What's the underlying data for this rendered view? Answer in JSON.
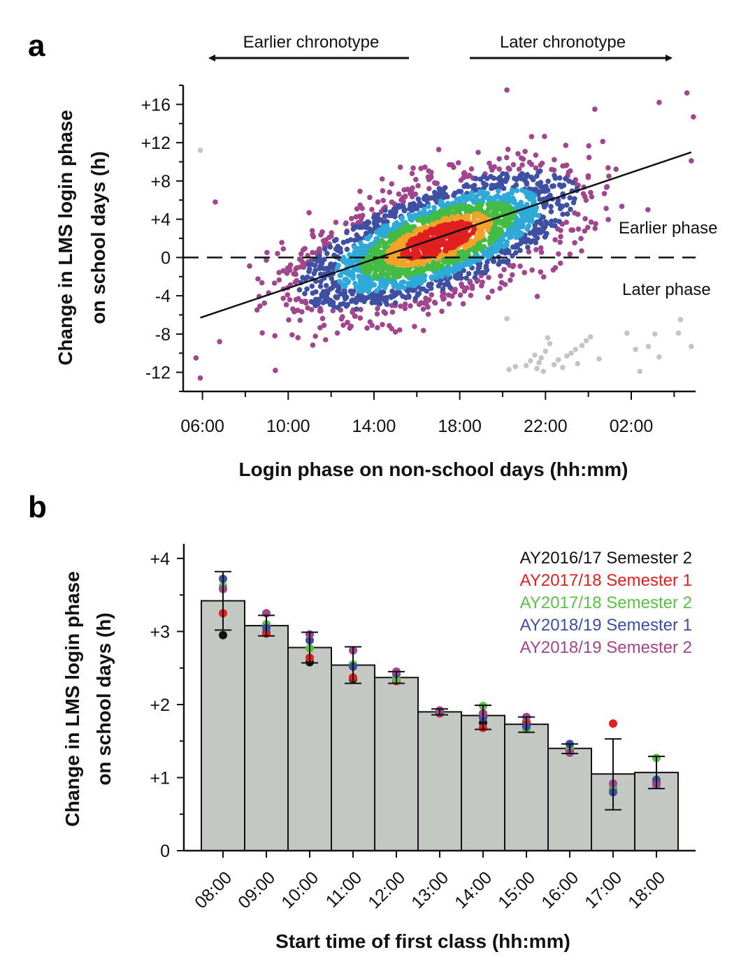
{
  "chart_data": [
    {
      "panel": "a",
      "type": "scatter",
      "title": "",
      "xlabel": "Login phase on non-school days (hh:mm)",
      "ylabel_lines": [
        "Change in LMS login phase",
        "on school days (h)"
      ],
      "x_tick_labels": [
        "06:00",
        "10:00",
        "14:00",
        "18:00",
        "22:00",
        "02:00"
      ],
      "x_tick_hours": [
        6,
        10,
        14,
        18,
        22,
        26
      ],
      "xlim_hours": [
        5.1,
        29.0
      ],
      "y_tick_labels": [
        "+16",
        "+12",
        "+8",
        "+4",
        "0",
        "-4",
        "-8",
        "-12"
      ],
      "y_tick_values": [
        16,
        12,
        8,
        4,
        0,
        -4,
        -8,
        -12
      ],
      "ylim": [
        -14,
        18
      ],
      "arrows": {
        "left": "Earlier chronotype",
        "right": "Later chronotype"
      },
      "annotations": {
        "above_zero": "Earlier phase",
        "below_zero": "Later phase"
      },
      "zero_line": "dashed",
      "regression_line": {
        "x_hours": [
          5.9,
          28.8
        ],
        "y": [
          -6.3,
          11.0
        ]
      },
      "density_colors": [
        "#a0468f",
        "#3f4fa2",
        "#2ea9d8",
        "#44bb44",
        "#f2a32a",
        "#e02020"
      ],
      "outlier_color": "#c4c4c4",
      "outlier_points": [
        [
          5.9,
          11.2
        ],
        [
          20.2,
          -6.4
        ],
        [
          20.3,
          -11.7
        ],
        [
          20.6,
          -11.4
        ],
        [
          21.1,
          -11.3
        ],
        [
          21.3,
          -10.8
        ],
        [
          21.5,
          -10.2
        ],
        [
          21.6,
          -11.6
        ],
        [
          21.7,
          -11.0
        ],
        [
          21.8,
          -10.5
        ],
        [
          21.9,
          -11.9
        ],
        [
          22.0,
          -9.8
        ],
        [
          22.1,
          -8.4
        ],
        [
          22.2,
          -9.0
        ],
        [
          22.4,
          -11.2
        ],
        [
          22.6,
          -10.7
        ],
        [
          22.8,
          -11.5
        ],
        [
          23.0,
          -10.3
        ],
        [
          23.2,
          -10.0
        ],
        [
          23.4,
          -9.6
        ],
        [
          23.5,
          -11.1
        ],
        [
          23.7,
          -9.2
        ],
        [
          23.9,
          -8.7
        ],
        [
          24.1,
          -8.3
        ],
        [
          24.5,
          -10.6
        ],
        [
          25.8,
          -7.9
        ],
        [
          26.2,
          -9.6
        ],
        [
          26.4,
          -11.9
        ],
        [
          26.8,
          -9.3
        ],
        [
          27.1,
          -8.0
        ],
        [
          27.3,
          -10.4
        ],
        [
          28.2,
          -7.9
        ],
        [
          28.3,
          -6.5
        ],
        [
          28.8,
          -9.3
        ]
      ]
    },
    {
      "panel": "b",
      "type": "bar",
      "title": "",
      "xlabel": "Start time of first class (hh:mm)",
      "ylabel_lines": [
        "Change in LMS login phase",
        "on school days (h)"
      ],
      "categories": [
        "08:00",
        "09:00",
        "10:00",
        "11:00",
        "12:00",
        "13:00",
        "14:00",
        "15:00",
        "16:00",
        "17:00",
        "18:00"
      ],
      "values": [
        3.42,
        3.08,
        2.78,
        2.54,
        2.37,
        1.9,
        1.85,
        1.73,
        1.4,
        1.05,
        1.07
      ],
      "error_low": [
        3.02,
        2.94,
        2.57,
        2.29,
        2.29,
        1.86,
        1.66,
        1.62,
        1.33,
        0.56,
        0.85
      ],
      "error_high": [
        3.82,
        3.22,
        2.99,
        2.79,
        2.45,
        1.94,
        1.99,
        1.83,
        1.46,
        1.53,
        1.29
      ],
      "ylim": [
        0,
        4.2
      ],
      "y_tick_labels": [
        "+4",
        "+3",
        "+2",
        "+1",
        "0"
      ],
      "y_tick_values": [
        4,
        3,
        2,
        1,
        0
      ],
      "bar_color": "#c3c8c3",
      "series": [
        {
          "name": "AY2016/17 Semester 2",
          "color": "#111111",
          "values": [
            2.95,
            2.98,
            2.58,
            2.35,
            2.33,
            1.88,
            1.75,
            1.73,
            1.38,
            0.85,
            0.92
          ]
        },
        {
          "name": "AY2017/18 Semester 1",
          "color": "#e02020",
          "values": [
            3.25,
            2.97,
            2.64,
            2.37,
            2.32,
            1.88,
            1.68,
            1.76,
            1.35,
            1.74,
            0.93
          ]
        },
        {
          "name": "AY2017/18 Semester 2",
          "color": "#5cbf4a",
          "values": [
            3.62,
            3.1,
            2.77,
            2.55,
            2.35,
            1.9,
            1.98,
            1.66,
            1.4,
            0.86,
            1.27
          ]
        },
        {
          "name": "AY2018/19 Semester 1",
          "color": "#3b4fa0",
          "values": [
            3.72,
            3.05,
            2.88,
            2.52,
            2.42,
            1.9,
            1.82,
            1.7,
            1.46,
            0.8,
            0.97
          ]
        },
        {
          "name": "AY2018/19 Semester 2",
          "color": "#a0468f",
          "values": [
            3.58,
            3.25,
            2.96,
            2.74,
            2.45,
            1.92,
            1.88,
            1.83,
            1.34,
            0.92,
            0.9
          ]
        }
      ]
    }
  ]
}
